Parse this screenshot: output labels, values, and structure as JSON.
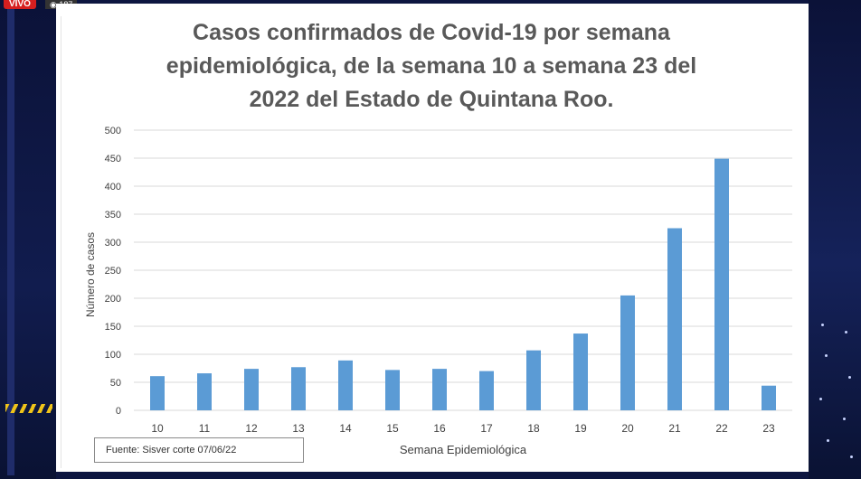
{
  "stream": {
    "live_label": "VIVO",
    "viewers_label": "◉ 187"
  },
  "chart_data": {
    "type": "bar",
    "title_lines": [
      "Casos confirmados de Covid-19 por semana",
      "epidemiológica, de la semana 10 a semana 23 del",
      "2022 del Estado de Quintana Roo."
    ],
    "xlabel": "Semana Epidemiológica",
    "ylabel": "Número de casos",
    "ylim": [
      0,
      500
    ],
    "yticks": [
      0,
      50,
      100,
      150,
      200,
      250,
      300,
      350,
      400,
      450,
      500
    ],
    "categories": [
      "10",
      "11",
      "12",
      "13",
      "14",
      "15",
      "16",
      "17",
      "18",
      "19",
      "20",
      "21",
      "22",
      "23"
    ],
    "values": [
      61,
      66,
      74,
      77,
      89,
      72,
      74,
      70,
      107,
      137,
      205,
      325,
      449,
      44
    ],
    "bar_color": "#5b9bd5",
    "grid": true,
    "source_note": "Fuente: Sisver corte 07/06/22"
  }
}
